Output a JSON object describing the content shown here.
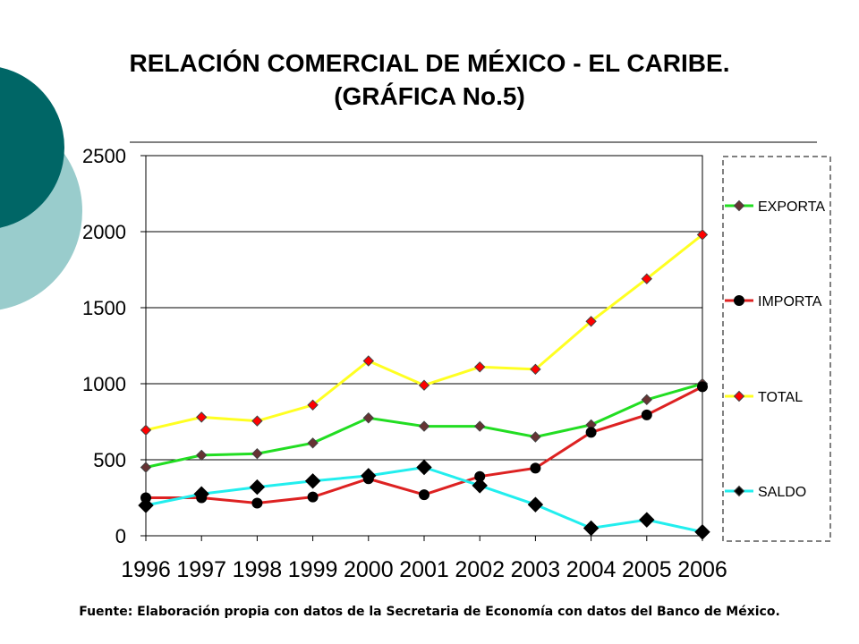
{
  "title_line1": "RELACIÓN COMERCIAL DE MÉXICO -  EL CARIBE.",
  "title_line2": "(GRÁFICA No.5)",
  "source": "Fuente: Elaboración propia con datos de la Secretaria de Economía con datos del Banco de México.",
  "colors": {
    "deco_dark": "#006666",
    "deco_light": "#99CCCC",
    "exporta": "#22DD22",
    "importa": "#DD2222",
    "total": "#FFFF22",
    "saldo": "#22EEEE",
    "grid": "#000000"
  },
  "chart_data": {
    "type": "line",
    "categories": [
      "1996",
      "1997",
      "1998",
      "1999",
      "2000",
      "2001",
      "2002",
      "2003",
      "2004",
      "2005",
      "2006"
    ],
    "ylim": [
      0,
      2500
    ],
    "yticks": [
      "0",
      "500",
      "1000",
      "1500",
      "2000",
      "2500"
    ],
    "grid": true,
    "legend_position": "right",
    "series": [
      {
        "name": "EXPORTA",
        "color": "#22DD22",
        "marker": "diamond-small",
        "marker_color": "#663333",
        "values": [
          450,
          530,
          540,
          610,
          775,
          720,
          720,
          650,
          730,
          895,
          1000
        ]
      },
      {
        "name": "IMPORTA",
        "color": "#DD2222",
        "marker": "circle",
        "marker_color": "#000000",
        "values": [
          250,
          250,
          215,
          255,
          375,
          270,
          390,
          445,
          680,
          795,
          980
        ]
      },
      {
        "name": "TOTAL",
        "color": "#FFFF22",
        "marker": "diamond-small",
        "marker_color": "#FF0000",
        "values": [
          695,
          780,
          755,
          860,
          1150,
          990,
          1110,
          1095,
          1410,
          1690,
          1980
        ]
      },
      {
        "name": "SALDO",
        "color": "#22EEEE",
        "marker": "diamond-large",
        "marker_color": "#000000",
        "values": [
          200,
          275,
          320,
          360,
          395,
          450,
          330,
          205,
          50,
          105,
          25
        ]
      }
    ]
  }
}
